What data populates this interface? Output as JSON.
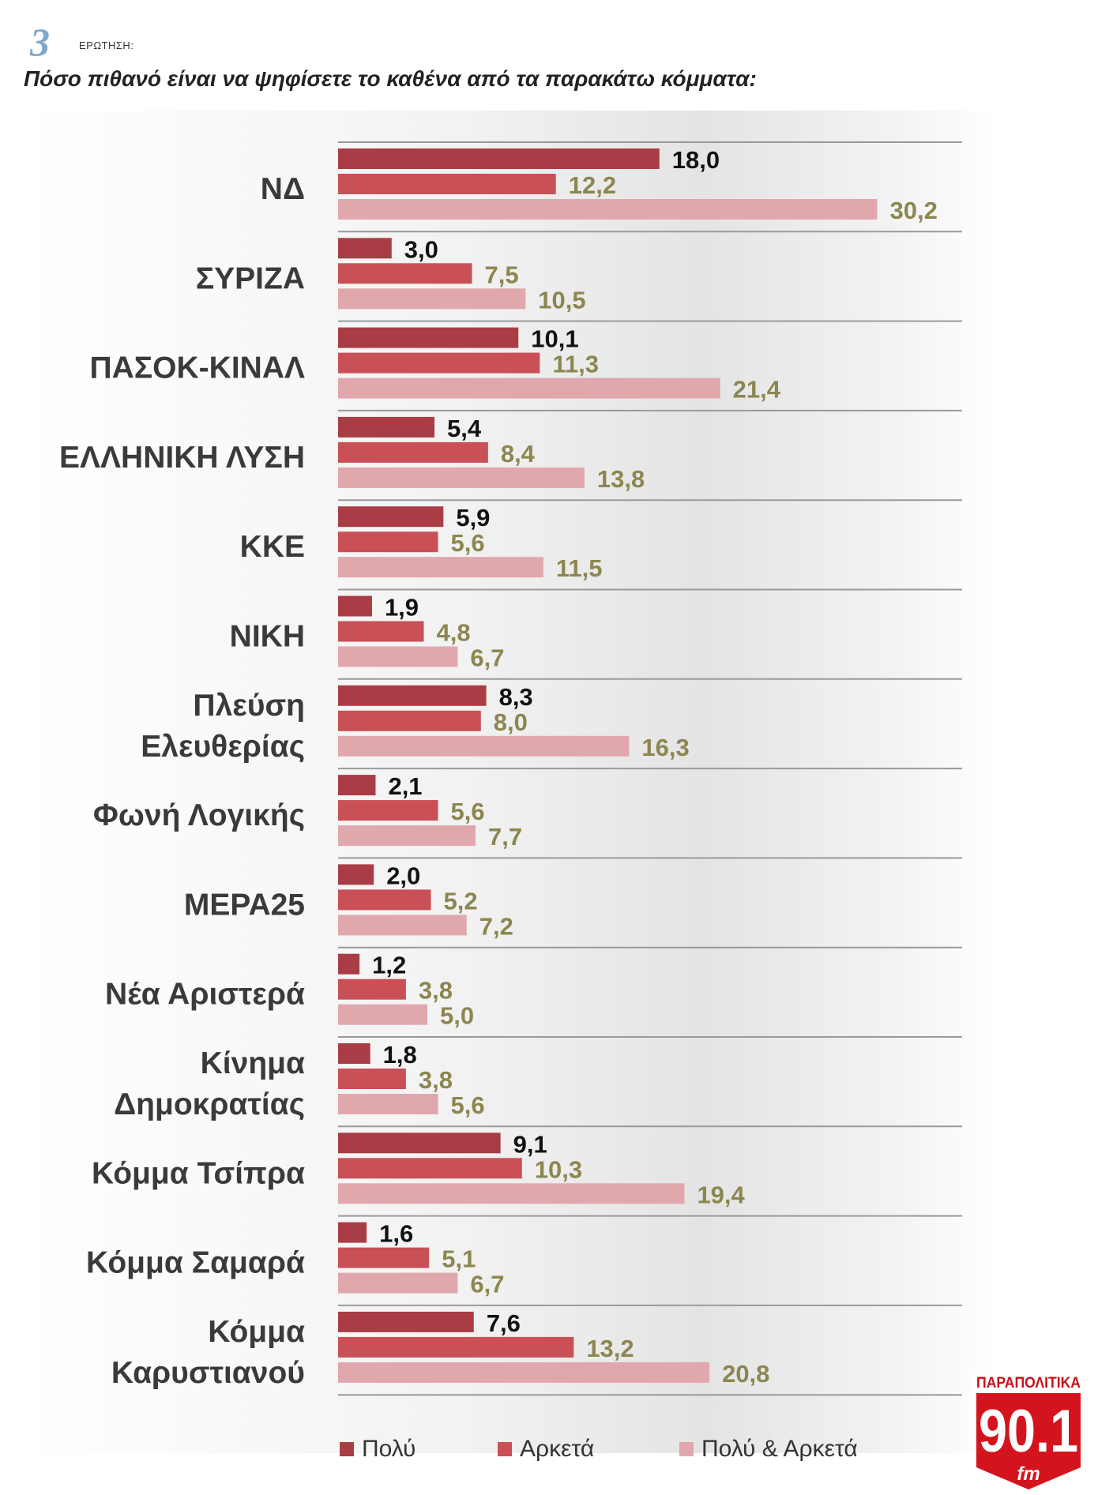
{
  "header": {
    "question_number": "3",
    "question_label": "ΕΡΩΤΗΣΗ:",
    "title": "Πόσο πιθανό είναι να ψηφίσετε το καθένα από τα παρακάτω κόμματα:"
  },
  "colors": {
    "polu": "#a93d45",
    "arketa": "#c95057",
    "polu_arketa": "#e0a8ad",
    "label_polu": "#111111",
    "label_other": "#8c8650"
  },
  "chart_data": {
    "type": "bar",
    "orientation": "horizontal",
    "categories": [
      [
        "ΝΔ"
      ],
      [
        "ΣΥΡΙΖΑ"
      ],
      [
        "ΠΑΣΟΚ-ΚΙΝΑΛ"
      ],
      [
        "ΕΛΛΗΝΙΚΗ ΛΥΣΗ"
      ],
      [
        "ΚΚΕ"
      ],
      [
        "ΝΙΚΗ"
      ],
      [
        "Πλεύση",
        "Ελευθερίας"
      ],
      [
        "Φωνή Λογικής"
      ],
      [
        "ΜΕΡΑ25"
      ],
      [
        "Νέα Αριστερά"
      ],
      [
        "Κίνημα",
        "Δημοκρατίας"
      ],
      [
        "Κόμμα Τσίπρα"
      ],
      [
        "Κόμμα Σαμαρά"
      ],
      [
        "Κόμμα",
        "Καρυστιανού"
      ]
    ],
    "series": [
      {
        "name": "Πολύ",
        "values": [
          18.0,
          3.0,
          10.1,
          5.4,
          5.9,
          1.9,
          8.3,
          2.1,
          2.0,
          1.2,
          1.8,
          9.1,
          1.6,
          7.6
        ],
        "labels": [
          "18,0",
          "3,0",
          "10,1",
          "5,4",
          "5,9",
          "1,9",
          "8,3",
          "2,1",
          "2,0",
          "1,2",
          "1,8",
          "9,1",
          "1,6",
          "7,6"
        ]
      },
      {
        "name": "Αρκετά",
        "values": [
          12.2,
          7.5,
          11.3,
          8.4,
          5.6,
          4.8,
          8.0,
          5.6,
          5.2,
          3.8,
          3.8,
          10.3,
          5.1,
          13.2
        ],
        "labels": [
          "12,2",
          "7,5",
          "11,3",
          "8,4",
          "5,6",
          "4,8",
          "8,0",
          "5,6",
          "5,2",
          "3,8",
          "3,8",
          "10,3",
          "5,1",
          "13,2"
        ]
      },
      {
        "name": "Πολύ & Αρκετά",
        "values": [
          30.2,
          10.5,
          21.4,
          13.8,
          11.5,
          6.7,
          16.3,
          7.7,
          7.2,
          5.0,
          5.6,
          19.4,
          6.7,
          20.8
        ],
        "labels": [
          "30,2",
          "10,5",
          "21,4",
          "13,8",
          "11,5",
          "6,7",
          "16,3",
          "7,7",
          "7,2",
          "5,0",
          "5,6",
          "19,4",
          "6,7",
          "20,8"
        ]
      }
    ],
    "xlim": [
      0,
      35
    ],
    "grid": false,
    "legend_position": "bottom"
  },
  "legend": {
    "items": [
      "Πολύ",
      "Αρκετά",
      "Πολύ & Αρκετά"
    ]
  },
  "logo": {
    "top_text": "ΠΑΡΑΠΟΛΙΤΙΚΑ",
    "number": "90.1",
    "suffix": "fm"
  }
}
